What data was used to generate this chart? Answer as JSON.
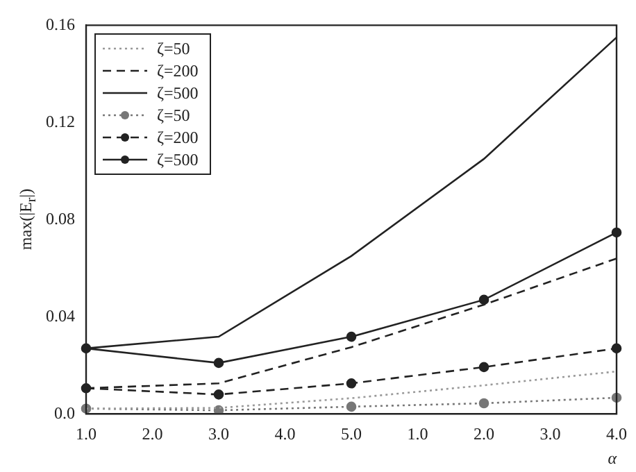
{
  "chart_data": {
    "type": "line",
    "xlabel": "α",
    "ylabel": "max(|E$_{r}$|)",
    "categories": [
      "1.0",
      "2.0",
      "3.0",
      "4.0",
      "5.0",
      "1.0",
      "2.0",
      "3.0",
      "4.0"
    ],
    "series": [
      {
        "name": "ζ=50",
        "color": "#999999",
        "line_style": "dotted",
        "marker": "none",
        "values": [
          0.0022,
          null,
          0.0025,
          null,
          0.0065,
          null,
          0.0118,
          null,
          0.0175
        ]
      },
      {
        "name": "ζ=200",
        "color": "#222222",
        "line_style": "dashed",
        "marker": "none",
        "values": [
          0.0106,
          null,
          0.0126,
          null,
          0.0275,
          null,
          0.045,
          null,
          0.064
        ]
      },
      {
        "name": "ζ=500",
        "color": "#222222",
        "line_style": "solid",
        "marker": "none",
        "values": [
          0.027,
          null,
          0.0318,
          null,
          0.065,
          null,
          0.105,
          null,
          0.155
        ]
      },
      {
        "name": "ζ=50",
        "color": "#777777",
        "line_style": "dotted",
        "marker": "circle",
        "values": [
          0.0022,
          null,
          0.0015,
          null,
          0.003,
          null,
          0.0044,
          null,
          0.0067
        ]
      },
      {
        "name": "ζ=200",
        "color": "#222222",
        "line_style": "dashed",
        "marker": "circle",
        "values": [
          0.0106,
          null,
          0.008,
          null,
          0.0126,
          null,
          0.0193,
          null,
          0.027
        ]
      },
      {
        "name": "ζ=500",
        "color": "#222222",
        "line_style": "solid",
        "marker": "circle",
        "values": [
          0.027,
          null,
          0.021,
          null,
          0.0318,
          null,
          0.047,
          null,
          0.0747
        ]
      }
    ],
    "ylim": [
      0,
      0.16
    ],
    "yticks": [
      {
        "value": 0,
        "label": "0.0"
      },
      0.04,
      0.08,
      0.12,
      0.16
    ],
    "grid": false,
    "legend": "top left"
  }
}
